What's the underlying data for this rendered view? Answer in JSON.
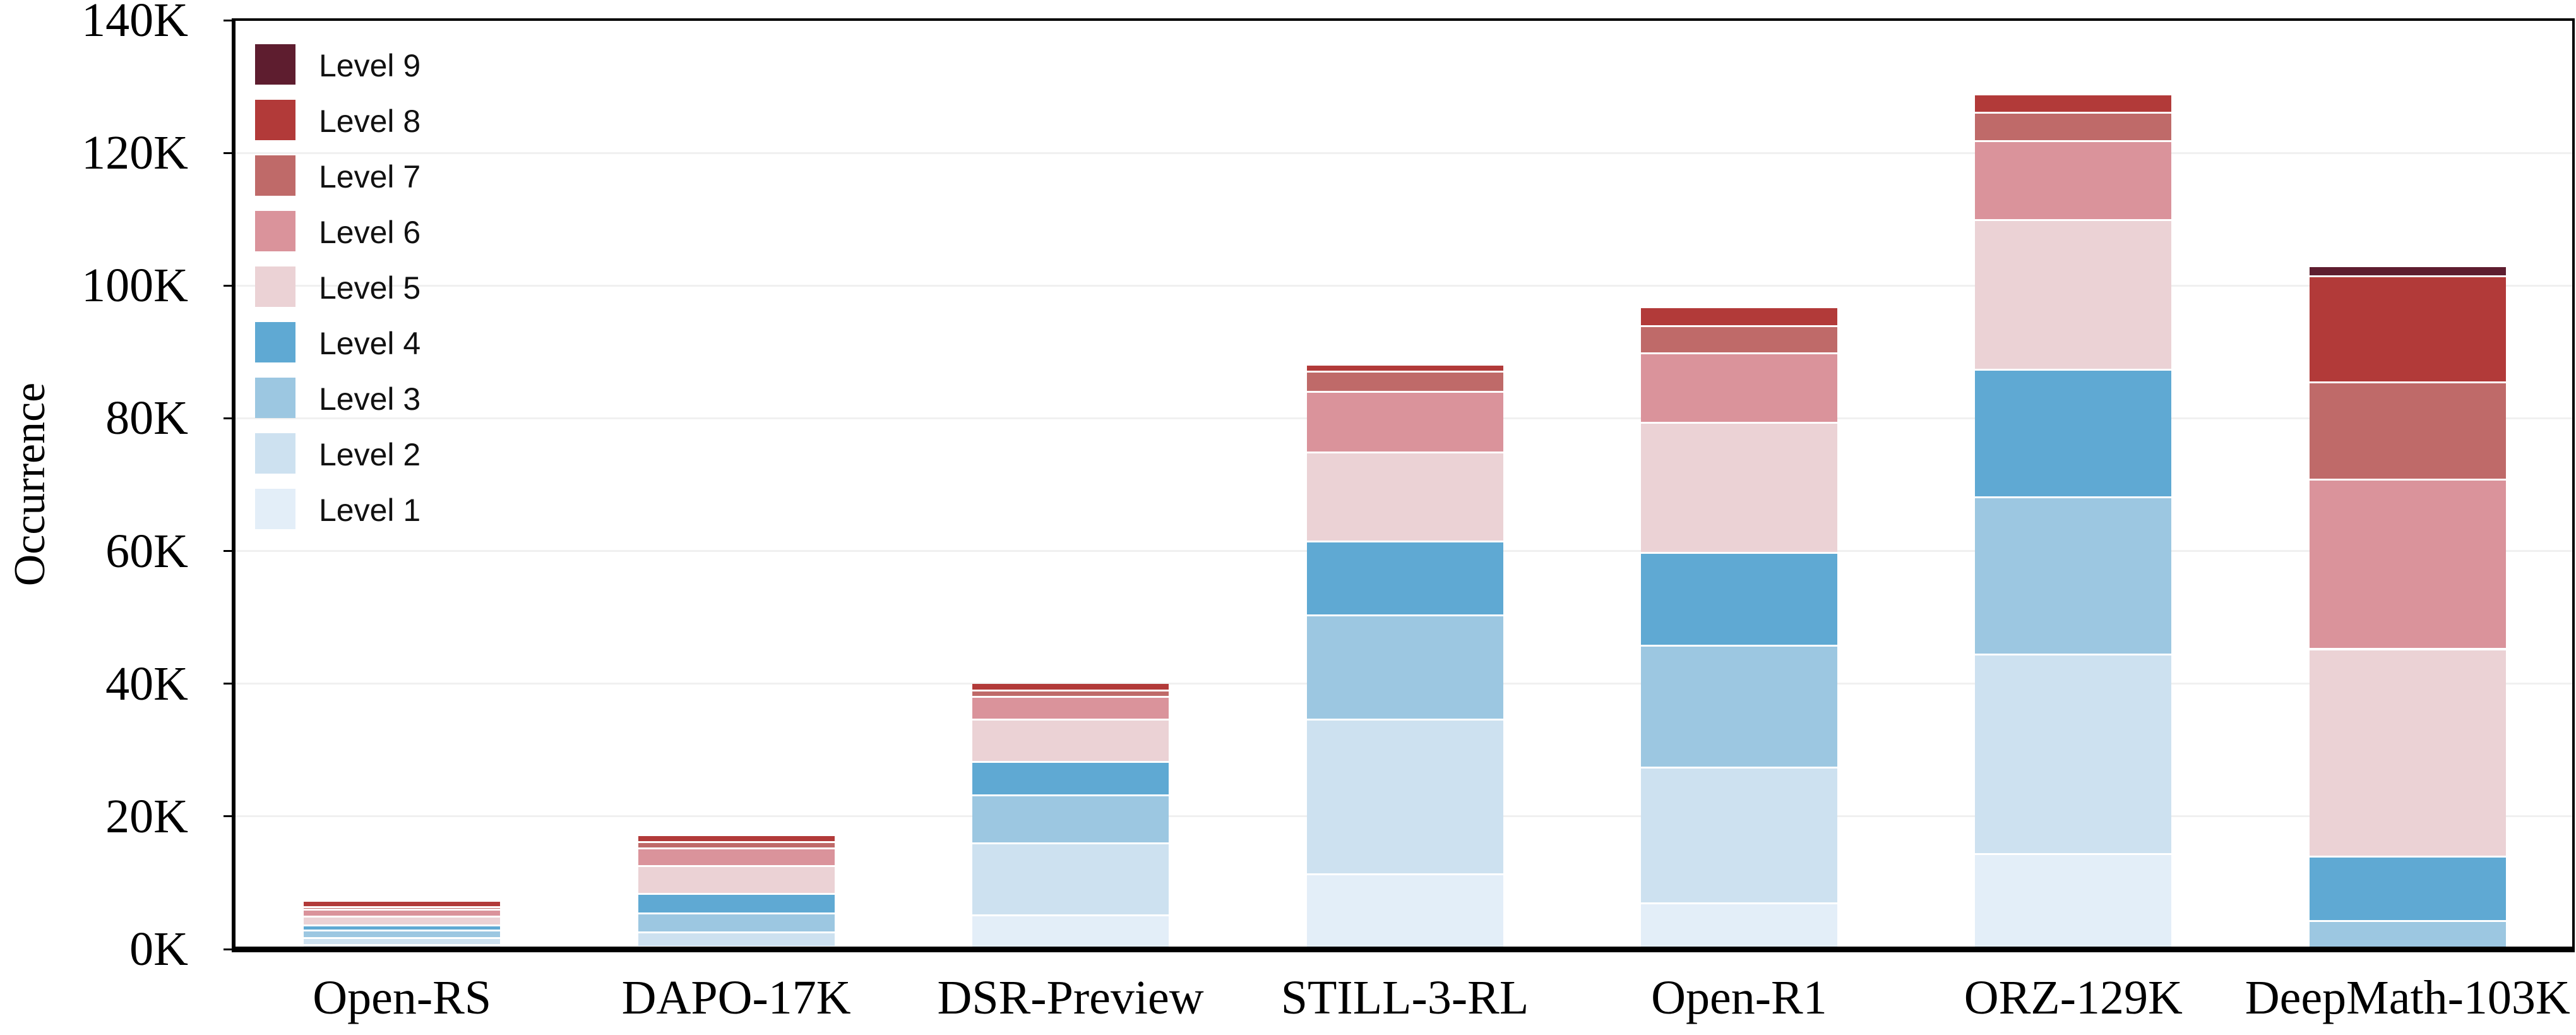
{
  "chart_data": {
    "type": "bar",
    "stacked": true,
    "title": "",
    "ylabel": "Occurrence",
    "xlabel": "",
    "units": "K",
    "ylim": [
      0,
      140
    ],
    "grid": "horizontal-light",
    "legend_position": "upper-left",
    "legend_order_top_to_bottom": [
      "Level 9",
      "Level 8",
      "Level 7",
      "Level 6",
      "Level 5",
      "Level 4",
      "Level 3",
      "Level 2",
      "Level 1"
    ],
    "categories": [
      "Open-RS",
      "DAPO-17K",
      "DSR-Preview",
      "STILL-3-RL",
      "Open-R1",
      "ORZ-129K",
      "DeepMath-103K"
    ],
    "yticks": [
      {
        "label": "0K",
        "value": 0
      },
      {
        "label": "20K",
        "value": 20
      },
      {
        "label": "40K",
        "value": 40
      },
      {
        "label": "60K",
        "value": 60
      },
      {
        "label": "80K",
        "value": 80
      },
      {
        "label": "100K",
        "value": 100
      },
      {
        "label": "120K",
        "value": 120
      },
      {
        "label": "140K",
        "value": 140
      }
    ],
    "series": [
      {
        "name": "Level 1",
        "color": "#e3eef8",
        "values": [
          0.75,
          0.45,
          5.2,
          11.4,
          7.0,
          14.5,
          0.05
        ]
      },
      {
        "name": "Level 2",
        "color": "#cde1f0",
        "values": [
          1.1,
          2.2,
          10.9,
          23.3,
          20.5,
          30.0,
          0.1
        ]
      },
      {
        "name": "Level 3",
        "color": "#9cc7e1",
        "values": [
          1.1,
          2.9,
          7.2,
          15.7,
          18.4,
          23.7,
          4.2
        ]
      },
      {
        "name": "Level 4",
        "color": "#5fa9d3",
        "values": [
          0.8,
          2.9,
          5.1,
          11.2,
          14.0,
          19.3,
          9.7
        ]
      },
      {
        "name": "Level 5",
        "color": "#ebd2d5",
        "values": [
          1.3,
          4.2,
          6.3,
          13.4,
          19.6,
          22.5,
          31.3
        ]
      },
      {
        "name": "Level 6",
        "color": "#da939b",
        "values": [
          1.0,
          2.7,
          3.5,
          9.1,
          10.4,
          11.9,
          25.6
        ]
      },
      {
        "name": "Level 7",
        "color": "#bf6a69",
        "values": [
          0.45,
          0.9,
          0.9,
          3.1,
          4.1,
          4.3,
          14.6
        ]
      },
      {
        "name": "Level 8",
        "color": "#b23a39",
        "values": [
          0.6,
          0.8,
          0.85,
          0.7,
          2.6,
          2.5,
          16.0
        ]
      },
      {
        "name": "Level 9",
        "color": "#5e1d2f",
        "values": [
          0.0,
          0.0,
          0.0,
          0.0,
          0.0,
          0.0,
          1.2
        ]
      }
    ],
    "totals_k": [
      7.1,
      17.05,
      40.0,
      87.9,
      96.6,
      128.7,
      102.75
    ]
  },
  "colors": {
    "background": "#ffffff",
    "axis": "#000000",
    "gridline": "#f0f0f0",
    "segment_separator": "#ffffff",
    "text": "#000000"
  }
}
